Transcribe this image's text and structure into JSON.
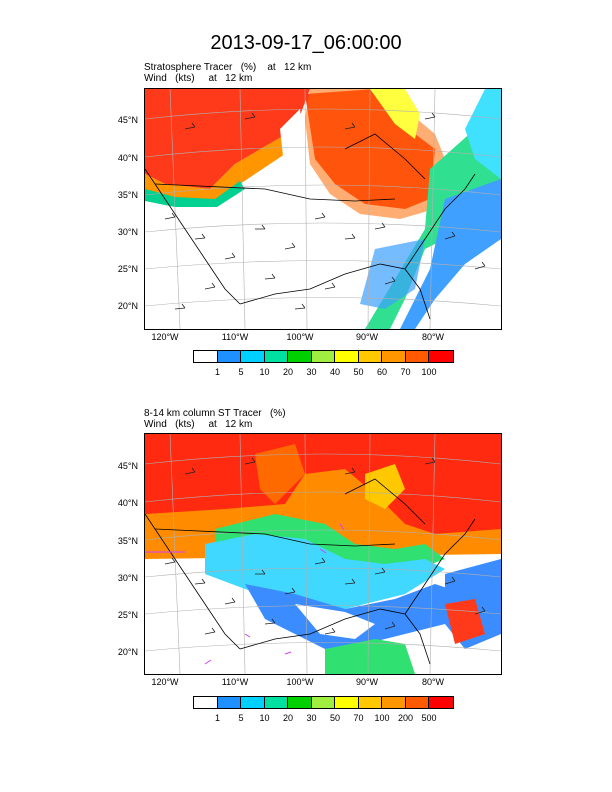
{
  "title": "2013-09-17_06:00:00",
  "panels": [
    {
      "label_line1": "Stratosphere Tracer   (%)    at   12 km",
      "label_line2": "Wind   (kts)     at   12 km",
      "colorbar_labels": [
        "1",
        "5",
        "10",
        "20",
        "30",
        "40",
        "50",
        "60",
        "70",
        "100"
      ],
      "colorbar_colors": [
        "#ffffff",
        "#1e90ff",
        "#00d0ff",
        "#00e0a0",
        "#00d000",
        "#a0ee40",
        "#ffff00",
        "#ffc800",
        "#ff9600",
        "#ff5a00",
        "#ff0000"
      ]
    },
    {
      "label_line1": "8-14 km column ST Tracer   (%)",
      "label_line2": "Wind   (kts)     at   12 km",
      "colorbar_labels": [
        "1",
        "5",
        "10",
        "20",
        "30",
        "50",
        "70",
        "100",
        "200",
        "500"
      ],
      "colorbar_colors": [
        "#ffffff",
        "#1e90ff",
        "#00d0ff",
        "#00e0a0",
        "#00d000",
        "#a0ee40",
        "#ffff00",
        "#ffc800",
        "#ff9600",
        "#ff5a00",
        "#ff0000"
      ]
    }
  ],
  "lat_labels": [
    "45°N",
    "40°N",
    "35°N",
    "30°N",
    "25°N",
    "20°N"
  ],
  "lon_labels": [
    "120°W",
    "110°W",
    "100°W",
    "90°W",
    "80°W"
  ]
}
